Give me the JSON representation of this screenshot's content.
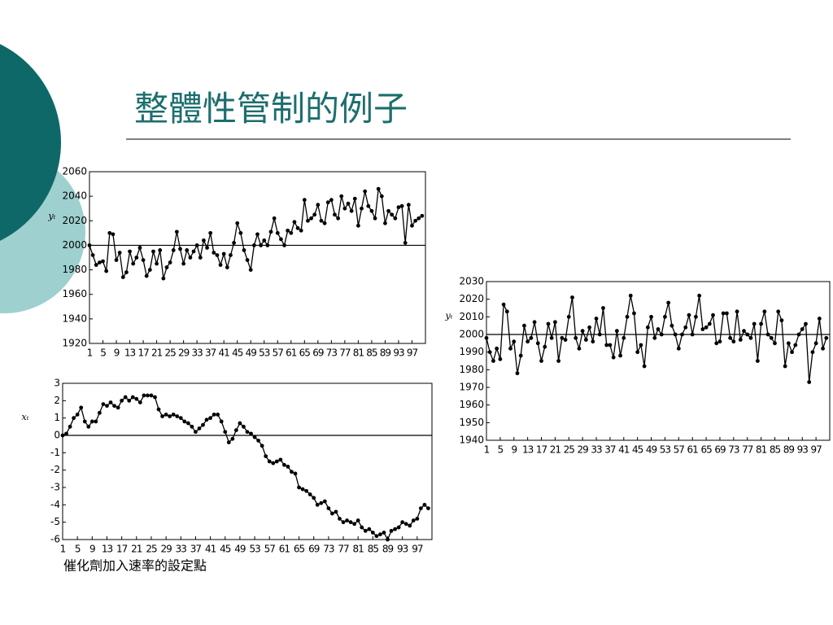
{
  "title": "整體性管制的例子",
  "caption": "催化劑加入速率的設定點",
  "chart_data": [
    {
      "type": "line",
      "ylabel": "yₜ",
      "color": "#000000",
      "hline": 2000,
      "x": [
        1,
        2,
        3,
        4,
        5,
        6,
        7,
        8,
        9,
        10,
        11,
        12,
        13,
        14,
        15,
        16,
        17,
        18,
        19,
        20,
        21,
        22,
        23,
        24,
        25,
        26,
        27,
        28,
        29,
        30,
        31,
        32,
        33,
        34,
        35,
        36,
        37,
        38,
        39,
        40,
        41,
        42,
        43,
        44,
        45,
        46,
        47,
        48,
        49,
        50,
        51,
        52,
        53,
        54,
        55,
        56,
        57,
        58,
        59,
        60,
        61,
        62,
        63,
        64,
        65,
        66,
        67,
        68,
        69,
        70,
        71,
        72,
        73,
        74,
        75,
        76,
        77,
        78,
        79,
        80,
        81,
        82,
        83,
        84,
        85,
        86,
        87,
        88,
        89,
        90,
        91,
        92,
        93,
        94,
        95,
        96,
        97,
        98,
        99,
        100
      ],
      "values": [
        2000,
        1992,
        1984,
        1986,
        1987,
        1979,
        2010,
        2009,
        1988,
        1994,
        1974,
        1978,
        1995,
        1985,
        1990,
        1998,
        1988,
        1975,
        1980,
        1995,
        1985,
        1996,
        1973,
        1982,
        1986,
        1996,
        2011,
        1997,
        1985,
        1996,
        1990,
        1995,
        2000,
        1990,
        2004,
        1998,
        2010,
        1994,
        1992,
        1984,
        1993,
        1982,
        1992,
        2002,
        2018,
        2010,
        1996,
        1988,
        1980,
        2000,
        2009,
        2000,
        2004,
        2000,
        2011,
        2022,
        2010,
        2005,
        2000,
        2012,
        2010,
        2019,
        2014,
        2012,
        2037,
        2020,
        2022,
        2025,
        2033,
        2020,
        2018,
        2035,
        2037,
        2025,
        2022,
        2040,
        2030,
        2034,
        2028,
        2038,
        2016,
        2030,
        2044,
        2032,
        2028,
        2022,
        2046,
        2040,
        2018,
        2028,
        2025,
        2022,
        2031,
        2032,
        2002,
        2033,
        2016,
        2020,
        2022,
        2024
      ],
      "xlim": [
        1,
        101
      ],
      "xticks": [
        1,
        5,
        9,
        13,
        17,
        21,
        25,
        29,
        33,
        37,
        41,
        45,
        49,
        53,
        57,
        61,
        65,
        69,
        73,
        77,
        81,
        85,
        89,
        93,
        97
      ],
      "ylim": [
        1920,
        2060
      ],
      "yticks": [
        1920,
        1940,
        1960,
        1980,
        2000,
        2020,
        2040,
        2060
      ]
    },
    {
      "type": "line",
      "ylabel": "xₜ",
      "color": "#000000",
      "hline": 0,
      "x": [
        1,
        2,
        3,
        4,
        5,
        6,
        7,
        8,
        9,
        10,
        11,
        12,
        13,
        14,
        15,
        16,
        17,
        18,
        19,
        20,
        21,
        22,
        23,
        24,
        25,
        26,
        27,
        28,
        29,
        30,
        31,
        32,
        33,
        34,
        35,
        36,
        37,
        38,
        39,
        40,
        41,
        42,
        43,
        44,
        45,
        46,
        47,
        48,
        49,
        50,
        51,
        52,
        53,
        54,
        55,
        56,
        57,
        58,
        59,
        60,
        61,
        62,
        63,
        64,
        65,
        66,
        67,
        68,
        69,
        70,
        71,
        72,
        73,
        74,
        75,
        76,
        77,
        78,
        79,
        80,
        81,
        82,
        83,
        84,
        85,
        86,
        87,
        88,
        89,
        90,
        91,
        92,
        93,
        94,
        95,
        96,
        97,
        98,
        99,
        100
      ],
      "values": [
        0,
        0.1,
        0.5,
        1,
        1.2,
        1.6,
        0.8,
        0.5,
        0.8,
        0.8,
        1.3,
        1.8,
        1.7,
        1.9,
        1.7,
        1.6,
        2,
        2.2,
        2,
        2.2,
        2.1,
        1.9,
        2.3,
        2.3,
        2.3,
        2.2,
        1.5,
        1.1,
        1.2,
        1.1,
        1.2,
        1.1,
        1,
        0.8,
        0.7,
        0.5,
        0.2,
        0.4,
        0.6,
        0.9,
        1,
        1.2,
        1.2,
        0.8,
        0.2,
        -0.4,
        -0.2,
        0.3,
        0.7,
        0.5,
        0.2,
        0.1,
        -0.1,
        -0.3,
        -0.6,
        -1.2,
        -1.5,
        -1.6,
        -1.5,
        -1.4,
        -1.7,
        -1.8,
        -2.1,
        -2.2,
        -3,
        -3.1,
        -3.2,
        -3.4,
        -3.6,
        -4,
        -3.9,
        -3.8,
        -4.2,
        -4.5,
        -4.4,
        -4.8,
        -5,
        -4.9,
        -5,
        -5.1,
        -4.9,
        -5.3,
        -5.5,
        -5.4,
        -5.6,
        -5.8,
        -5.7,
        -5.6,
        -6,
        -5.5,
        -5.4,
        -5.3,
        -5,
        -5.1,
        -5.2,
        -4.9,
        -4.8,
        -4.2,
        -4,
        -4.2
      ],
      "xlim": [
        1,
        101
      ],
      "xticks": [
        1,
        5,
        9,
        13,
        17,
        21,
        25,
        29,
        33,
        37,
        41,
        45,
        49,
        53,
        57,
        61,
        65,
        69,
        73,
        77,
        81,
        85,
        89,
        93,
        97
      ],
      "ylim": [
        -6,
        3
      ],
      "yticks": [
        -6,
        -5,
        -4,
        -3,
        -2,
        -1,
        0,
        1,
        2,
        3
      ]
    },
    {
      "type": "line",
      "ylabel": "yₜ",
      "color": "#000000",
      "hline": 2000,
      "x": [
        1,
        2,
        3,
        4,
        5,
        6,
        7,
        8,
        9,
        10,
        11,
        12,
        13,
        14,
        15,
        16,
        17,
        18,
        19,
        20,
        21,
        22,
        23,
        24,
        25,
        26,
        27,
        28,
        29,
        30,
        31,
        32,
        33,
        34,
        35,
        36,
        37,
        38,
        39,
        40,
        41,
        42,
        43,
        44,
        45,
        46,
        47,
        48,
        49,
        50,
        51,
        52,
        53,
        54,
        55,
        56,
        57,
        58,
        59,
        60,
        61,
        62,
        63,
        64,
        65,
        66,
        67,
        68,
        69,
        70,
        71,
        72,
        73,
        74,
        75,
        76,
        77,
        78,
        79,
        80,
        81,
        82,
        83,
        84,
        85,
        86,
        87,
        88,
        89,
        90,
        91,
        92,
        93,
        94,
        95,
        96,
        97,
        98,
        99,
        100
      ],
      "values": [
        1998,
        1990,
        1985,
        1992,
        1986,
        2017,
        2013,
        1992,
        1996,
        1978,
        1988,
        2005,
        1996,
        1998,
        2007,
        1995,
        1985,
        1993,
        2006,
        1998,
        2007,
        1985,
        1998,
        1997,
        2010,
        2021,
        1998,
        1992,
        2002,
        1997,
        2004,
        1996,
        2009,
        2000,
        2015,
        1994,
        1994,
        1987,
        2002,
        1988,
        1998,
        2010,
        2022,
        2012,
        1990,
        1994,
        1982,
        2004,
        2010,
        1998,
        2003,
        2000,
        2010,
        2018,
        2005,
        2000,
        1992,
        2000,
        2004,
        2011,
        2000,
        2010,
        2022,
        2003,
        2004,
        2006,
        2011,
        1995,
        1996,
        2012,
        2012,
        1998,
        1996,
        2013,
        1997,
        2002,
        2000,
        1998,
        2006,
        1985,
        2006,
        2013,
        2000,
        1998,
        1995,
        2013,
        2008,
        1982,
        1995,
        1990,
        1994,
        2000,
        2003,
        2006,
        1973,
        1990,
        1995,
        2009,
        1992,
        1998
      ],
      "xlim": [
        1,
        101
      ],
      "xticks": [
        1,
        5,
        9,
        13,
        17,
        21,
        25,
        29,
        33,
        37,
        41,
        45,
        49,
        53,
        57,
        61,
        65,
        69,
        73,
        77,
        81,
        85,
        89,
        93,
        97
      ],
      "ylim": [
        1940,
        2030
      ],
      "yticks": [
        1940,
        1950,
        1960,
        1970,
        1980,
        1990,
        2000,
        2010,
        2020,
        2030
      ]
    }
  ]
}
